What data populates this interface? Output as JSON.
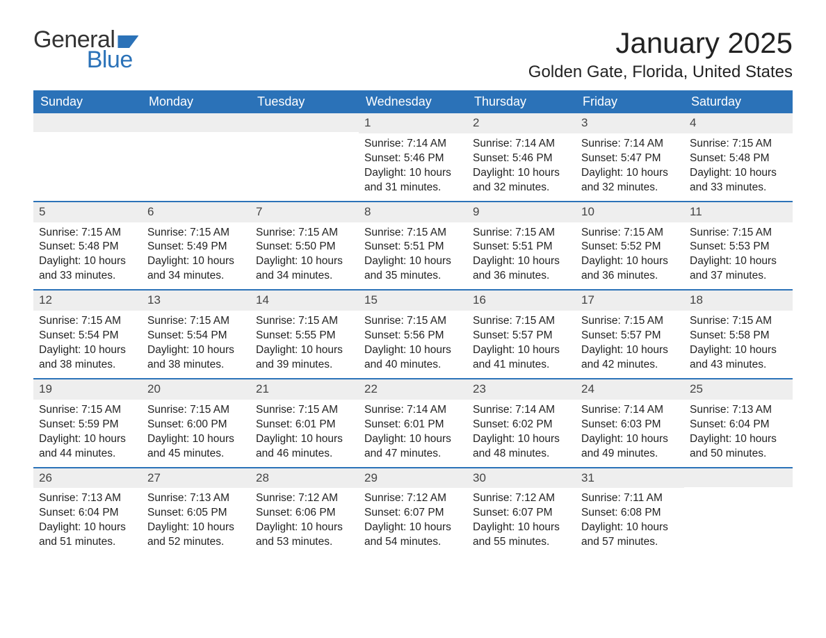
{
  "logo": {
    "word1": "General",
    "word2": "Blue"
  },
  "title": "January 2025",
  "location": "Golden Gate, Florida, United States",
  "colors": {
    "header_bg": "#2b72b8",
    "header_text": "#ffffff",
    "daynum_bg": "#eeeeee",
    "row_border": "#2b72b8",
    "text": "#222222",
    "background": "#ffffff"
  },
  "day_headers": [
    "Sunday",
    "Monday",
    "Tuesday",
    "Wednesday",
    "Thursday",
    "Friday",
    "Saturday"
  ],
  "weeks": [
    [
      {
        "blank": true
      },
      {
        "blank": true
      },
      {
        "blank": true
      },
      {
        "num": "1",
        "sunrise": "Sunrise: 7:14 AM",
        "sunset": "Sunset: 5:46 PM",
        "d1": "Daylight: 10 hours",
        "d2": "and 31 minutes."
      },
      {
        "num": "2",
        "sunrise": "Sunrise: 7:14 AM",
        "sunset": "Sunset: 5:46 PM",
        "d1": "Daylight: 10 hours",
        "d2": "and 32 minutes."
      },
      {
        "num": "3",
        "sunrise": "Sunrise: 7:14 AM",
        "sunset": "Sunset: 5:47 PM",
        "d1": "Daylight: 10 hours",
        "d2": "and 32 minutes."
      },
      {
        "num": "4",
        "sunrise": "Sunrise: 7:15 AM",
        "sunset": "Sunset: 5:48 PM",
        "d1": "Daylight: 10 hours",
        "d2": "and 33 minutes."
      }
    ],
    [
      {
        "num": "5",
        "sunrise": "Sunrise: 7:15 AM",
        "sunset": "Sunset: 5:48 PM",
        "d1": "Daylight: 10 hours",
        "d2": "and 33 minutes."
      },
      {
        "num": "6",
        "sunrise": "Sunrise: 7:15 AM",
        "sunset": "Sunset: 5:49 PM",
        "d1": "Daylight: 10 hours",
        "d2": "and 34 minutes."
      },
      {
        "num": "7",
        "sunrise": "Sunrise: 7:15 AM",
        "sunset": "Sunset: 5:50 PM",
        "d1": "Daylight: 10 hours",
        "d2": "and 34 minutes."
      },
      {
        "num": "8",
        "sunrise": "Sunrise: 7:15 AM",
        "sunset": "Sunset: 5:51 PM",
        "d1": "Daylight: 10 hours",
        "d2": "and 35 minutes."
      },
      {
        "num": "9",
        "sunrise": "Sunrise: 7:15 AM",
        "sunset": "Sunset: 5:51 PM",
        "d1": "Daylight: 10 hours",
        "d2": "and 36 minutes."
      },
      {
        "num": "10",
        "sunrise": "Sunrise: 7:15 AM",
        "sunset": "Sunset: 5:52 PM",
        "d1": "Daylight: 10 hours",
        "d2": "and 36 minutes."
      },
      {
        "num": "11",
        "sunrise": "Sunrise: 7:15 AM",
        "sunset": "Sunset: 5:53 PM",
        "d1": "Daylight: 10 hours",
        "d2": "and 37 minutes."
      }
    ],
    [
      {
        "num": "12",
        "sunrise": "Sunrise: 7:15 AM",
        "sunset": "Sunset: 5:54 PM",
        "d1": "Daylight: 10 hours",
        "d2": "and 38 minutes."
      },
      {
        "num": "13",
        "sunrise": "Sunrise: 7:15 AM",
        "sunset": "Sunset: 5:54 PM",
        "d1": "Daylight: 10 hours",
        "d2": "and 38 minutes."
      },
      {
        "num": "14",
        "sunrise": "Sunrise: 7:15 AM",
        "sunset": "Sunset: 5:55 PM",
        "d1": "Daylight: 10 hours",
        "d2": "and 39 minutes."
      },
      {
        "num": "15",
        "sunrise": "Sunrise: 7:15 AM",
        "sunset": "Sunset: 5:56 PM",
        "d1": "Daylight: 10 hours",
        "d2": "and 40 minutes."
      },
      {
        "num": "16",
        "sunrise": "Sunrise: 7:15 AM",
        "sunset": "Sunset: 5:57 PM",
        "d1": "Daylight: 10 hours",
        "d2": "and 41 minutes."
      },
      {
        "num": "17",
        "sunrise": "Sunrise: 7:15 AM",
        "sunset": "Sunset: 5:57 PM",
        "d1": "Daylight: 10 hours",
        "d2": "and 42 minutes."
      },
      {
        "num": "18",
        "sunrise": "Sunrise: 7:15 AM",
        "sunset": "Sunset: 5:58 PM",
        "d1": "Daylight: 10 hours",
        "d2": "and 43 minutes."
      }
    ],
    [
      {
        "num": "19",
        "sunrise": "Sunrise: 7:15 AM",
        "sunset": "Sunset: 5:59 PM",
        "d1": "Daylight: 10 hours",
        "d2": "and 44 minutes."
      },
      {
        "num": "20",
        "sunrise": "Sunrise: 7:15 AM",
        "sunset": "Sunset: 6:00 PM",
        "d1": "Daylight: 10 hours",
        "d2": "and 45 minutes."
      },
      {
        "num": "21",
        "sunrise": "Sunrise: 7:15 AM",
        "sunset": "Sunset: 6:01 PM",
        "d1": "Daylight: 10 hours",
        "d2": "and 46 minutes."
      },
      {
        "num": "22",
        "sunrise": "Sunrise: 7:14 AM",
        "sunset": "Sunset: 6:01 PM",
        "d1": "Daylight: 10 hours",
        "d2": "and 47 minutes."
      },
      {
        "num": "23",
        "sunrise": "Sunrise: 7:14 AM",
        "sunset": "Sunset: 6:02 PM",
        "d1": "Daylight: 10 hours",
        "d2": "and 48 minutes."
      },
      {
        "num": "24",
        "sunrise": "Sunrise: 7:14 AM",
        "sunset": "Sunset: 6:03 PM",
        "d1": "Daylight: 10 hours",
        "d2": "and 49 minutes."
      },
      {
        "num": "25",
        "sunrise": "Sunrise: 7:13 AM",
        "sunset": "Sunset: 6:04 PM",
        "d1": "Daylight: 10 hours",
        "d2": "and 50 minutes."
      }
    ],
    [
      {
        "num": "26",
        "sunrise": "Sunrise: 7:13 AM",
        "sunset": "Sunset: 6:04 PM",
        "d1": "Daylight: 10 hours",
        "d2": "and 51 minutes."
      },
      {
        "num": "27",
        "sunrise": "Sunrise: 7:13 AM",
        "sunset": "Sunset: 6:05 PM",
        "d1": "Daylight: 10 hours",
        "d2": "and 52 minutes."
      },
      {
        "num": "28",
        "sunrise": "Sunrise: 7:12 AM",
        "sunset": "Sunset: 6:06 PM",
        "d1": "Daylight: 10 hours",
        "d2": "and 53 minutes."
      },
      {
        "num": "29",
        "sunrise": "Sunrise: 7:12 AM",
        "sunset": "Sunset: 6:07 PM",
        "d1": "Daylight: 10 hours",
        "d2": "and 54 minutes."
      },
      {
        "num": "30",
        "sunrise": "Sunrise: 7:12 AM",
        "sunset": "Sunset: 6:07 PM",
        "d1": "Daylight: 10 hours",
        "d2": "and 55 minutes."
      },
      {
        "num": "31",
        "sunrise": "Sunrise: 7:11 AM",
        "sunset": "Sunset: 6:08 PM",
        "d1": "Daylight: 10 hours",
        "d2": "and 57 minutes."
      },
      {
        "blank": true
      }
    ]
  ]
}
